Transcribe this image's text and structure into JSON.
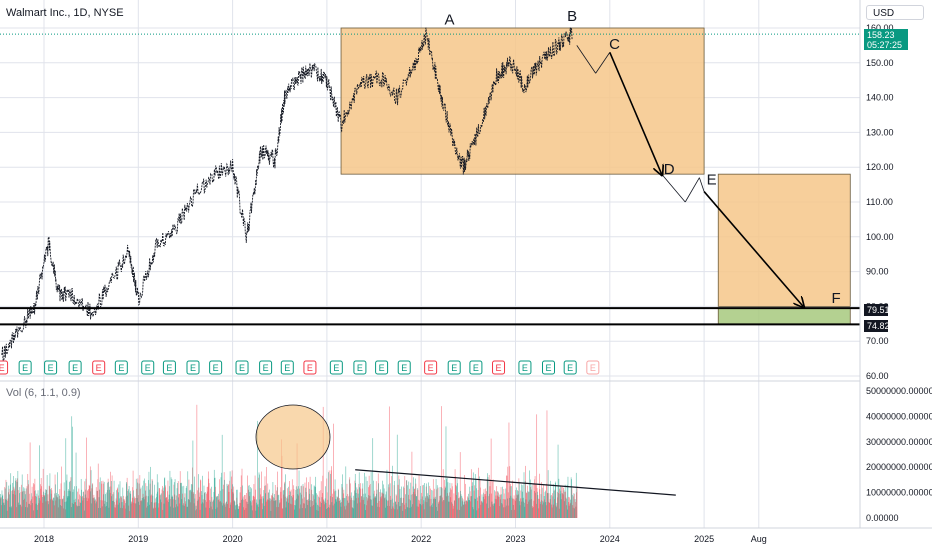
{
  "header": {
    "symbol_title": "Walmart Inc., 1D, NYSE",
    "currency": "USD",
    "last_price": "158.23",
    "countdown": "05:27:25"
  },
  "volume_label": "Vol (6, 1.1, 0.9)",
  "level_badges": [
    "79.51",
    "74.82"
  ],
  "earnings_marker": "E",
  "colors": {
    "up": "#089981",
    "down": "#f23645",
    "zone_fill": "#f6c78a",
    "support_fill": "#a7c97e",
    "line": "#131722",
    "grid": "#e0e3eb"
  },
  "chart_data": {
    "type": "line",
    "price_axis": {
      "ticks": [
        "160.00",
        "150.00",
        "140.00",
        "130.00",
        "120.00",
        "110.00",
        "100.00",
        "90.00",
        "80.00",
        "70.00",
        "60.00"
      ],
      "range": [
        58,
        160
      ]
    },
    "volume_axis": {
      "ticks": [
        "50000000.00000",
        "40000000.00000",
        "30000000.00000",
        "20000000.00000",
        "10000000.00000",
        "0.00000"
      ]
    },
    "time_axis": {
      "ticks": [
        "2018",
        "2019",
        "2020",
        "2021",
        "2022",
        "2023",
        "2024",
        "2025",
        "Aug"
      ]
    },
    "series": [
      {
        "values": [
          [
            2017.55,
            66
          ],
          [
            2017.7,
            72
          ],
          [
            2017.9,
            80
          ],
          [
            2018.05,
            98
          ],
          [
            2018.15,
            84
          ],
          [
            2018.3,
            83
          ],
          [
            2018.5,
            78
          ],
          [
            2018.7,
            86
          ],
          [
            2018.9,
            96
          ],
          [
            2019.0,
            82
          ],
          [
            2019.2,
            98
          ],
          [
            2019.4,
            103
          ],
          [
            2019.6,
            112
          ],
          [
            2019.8,
            118
          ],
          [
            2020.0,
            120
          ],
          [
            2020.15,
            100
          ],
          [
            2020.3,
            125
          ],
          [
            2020.45,
            122
          ],
          [
            2020.55,
            140
          ],
          [
            2020.7,
            146
          ],
          [
            2020.85,
            148
          ],
          [
            2021.0,
            145
          ],
          [
            2021.15,
            132
          ],
          [
            2021.35,
            144
          ],
          [
            2021.55,
            146
          ],
          [
            2021.75,
            140
          ],
          [
            2021.95,
            150
          ],
          [
            2022.05,
            158
          ],
          [
            2022.2,
            142
          ],
          [
            2022.35,
            126
          ],
          [
            2022.45,
            120
          ],
          [
            2022.6,
            130
          ],
          [
            2022.8,
            146
          ],
          [
            2022.95,
            150
          ],
          [
            2023.1,
            143
          ],
          [
            2023.25,
            150
          ],
          [
            2023.45,
            155
          ],
          [
            2023.6,
            158.23
          ]
        ]
      }
    ],
    "earnings_events": [
      2017.55,
      2017.8,
      2018.07,
      2018.33,
      2018.58,
      2018.82,
      2019.1,
      2019.33,
      2019.58,
      2019.82,
      2020.1,
      2020.35,
      2020.58,
      2020.82,
      2021.1,
      2021.35,
      2021.58,
      2021.82,
      2022.1,
      2022.35,
      2022.58,
      2022.82,
      2023.1,
      2023.35,
      2023.58,
      2023.82
    ],
    "volume_trendline": [
      [
        2021.3,
        19000000
      ],
      [
        2024.7,
        9000000
      ]
    ],
    "zones": [
      {
        "x": [
          2021.15,
          2025.0
        ],
        "y": [
          118,
          160
        ]
      },
      {
        "x": [
          2025.15,
          2026.55
        ],
        "y": [
          80,
          118
        ]
      },
      {
        "x": [
          2025.15,
          2026.55
        ],
        "y": [
          74.82,
          79.51
        ]
      }
    ],
    "horizontal_levels": [
      79.51,
      74.82
    ],
    "projection": [
      [
        2023.65,
        155
      ],
      [
        2023.85,
        147
      ],
      [
        2024.0,
        153
      ],
      [
        2024.55,
        118
      ],
      [
        2024.8,
        110
      ],
      [
        2024.95,
        117
      ],
      [
        2025.0,
        113
      ],
      [
        2026.05,
        80
      ]
    ],
    "annotations": [
      {
        "text": "A",
        "x": 2022.3,
        "y": 161
      },
      {
        "text": "B",
        "x": 2023.6,
        "y": 162
      },
      {
        "text": "C",
        "x": 2024.05,
        "y": 154
      },
      {
        "text": "D",
        "x": 2024.63,
        "y": 118
      },
      {
        "text": "E",
        "x": 2025.08,
        "y": 115
      },
      {
        "text": "F",
        "x": 2026.4,
        "y": 81
      }
    ]
  }
}
